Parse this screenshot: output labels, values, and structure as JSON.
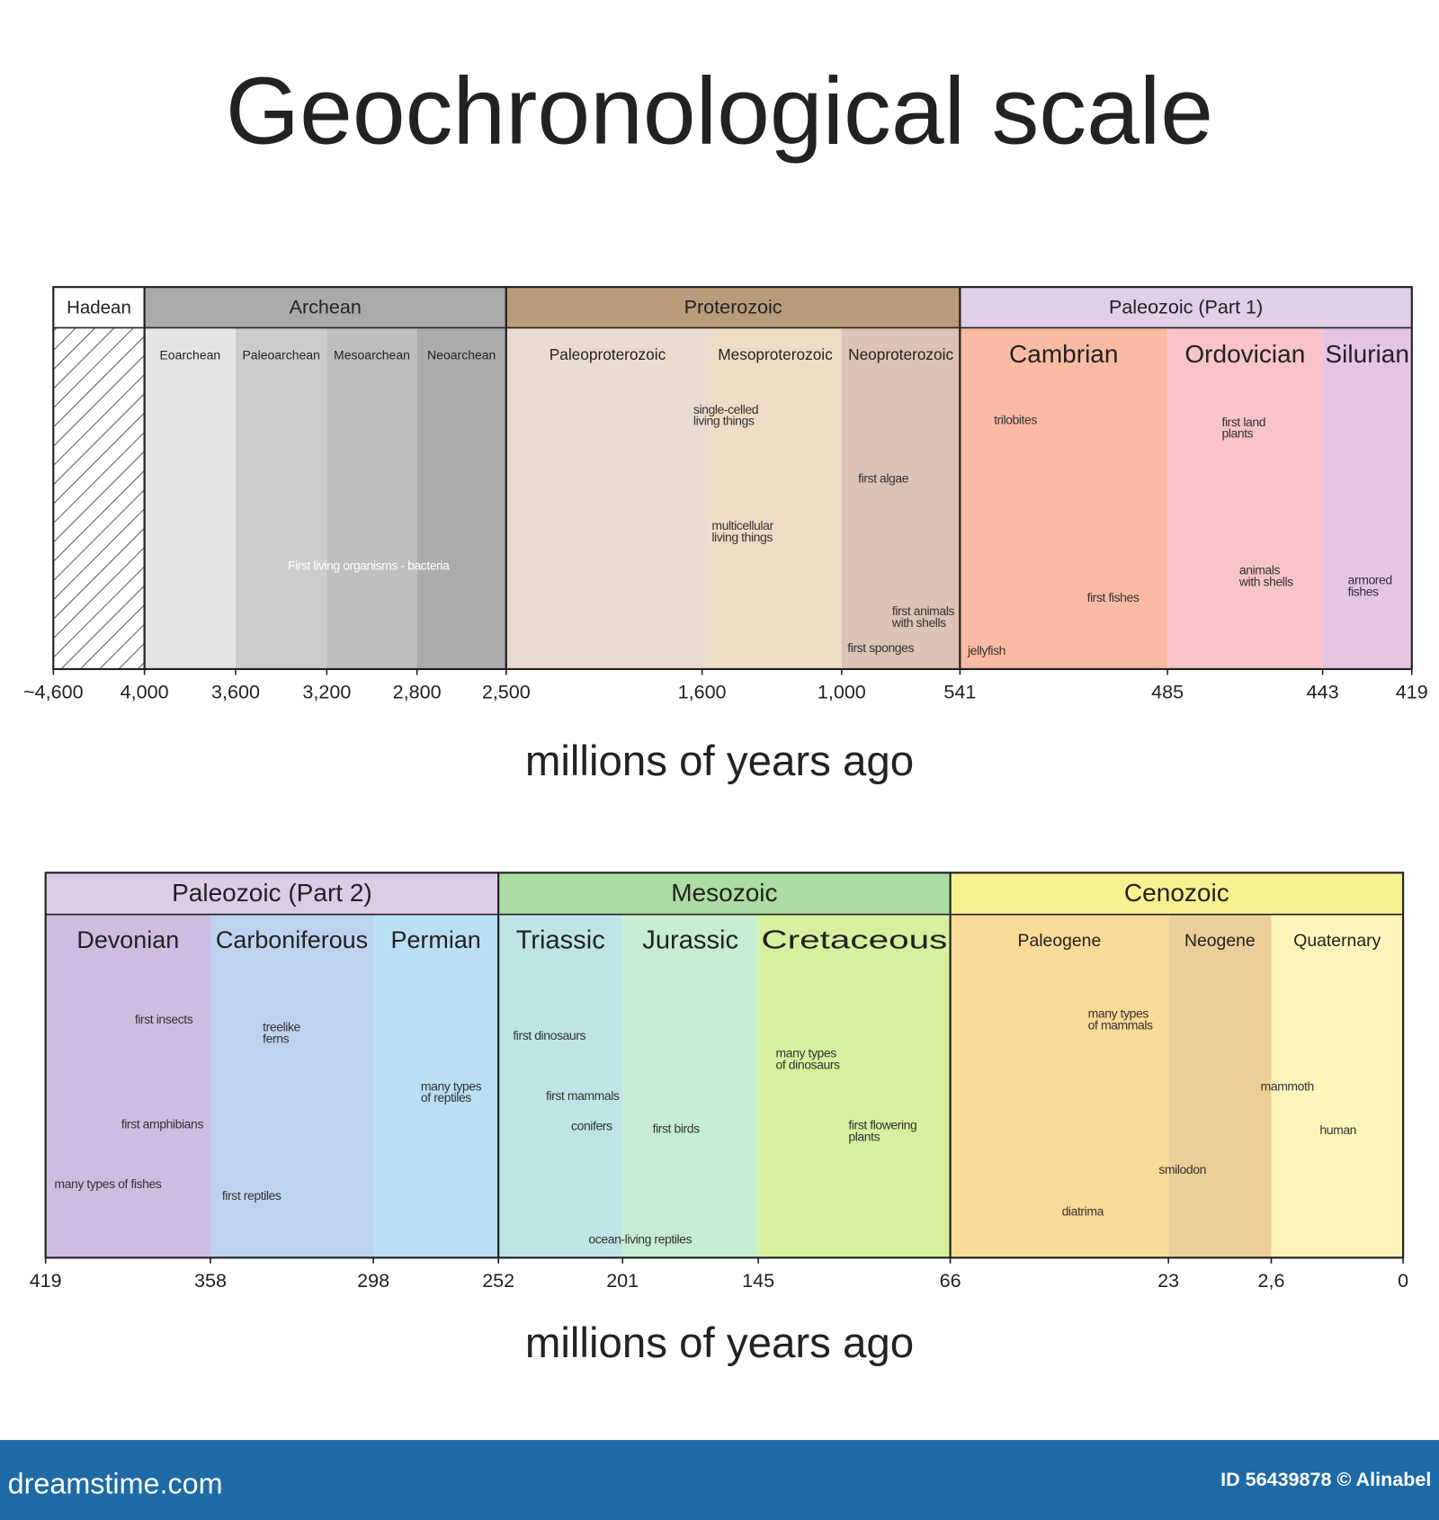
{
  "title": "Geochronological scale",
  "rows": [
    {
      "eras": [
        {
          "name": "Hadean",
          "color": "#ffffff",
          "periods": []
        },
        {
          "name": "Archean",
          "color": "#a9aba9",
          "periods": [
            {
              "name": "Eoarchean",
              "color": "#e3e4e3"
            },
            {
              "name": "Paleoarchean",
              "color": "#cbcccb"
            },
            {
              "name": "Mesoarchean",
              "color": "#bdbebd"
            },
            {
              "name": "Neoarchean",
              "color": "#abacab"
            }
          ]
        },
        {
          "name": "Proterozoic",
          "color": "#b99b79",
          "periods": [
            {
              "name": "Paleoproterozoic",
              "color": "#eadbd1"
            },
            {
              "name": "Mesoproterozoic",
              "color": "#eedcc4"
            },
            {
              "name": "Neoproterozoic",
              "color": "#dcc3b3"
            }
          ]
        },
        {
          "name": "Paleozoic  (Part 1)",
          "color": "#e0cfe7",
          "periods": [
            {
              "name": "Cambrian",
              "color": "#f9bba2"
            },
            {
              "name": "Ordovician",
              "color": "#f9c4c8"
            },
            {
              "name": "Silurian",
              "color": "#e5c4e4"
            }
          ]
        }
      ],
      "ticks": [
        "~4,600",
        "4,000",
        "3,600",
        "3,200",
        "2,800",
        "2,500",
        "1,600",
        "1,000",
        "541",
        "485",
        "443",
        "419"
      ],
      "labels": [
        [
          "First living organisms - bacteria"
        ],
        [
          "single-celled",
          "living things"
        ],
        [
          "multicellular",
          "living things"
        ],
        [
          "first algae"
        ],
        [
          "first animals",
          "with shells"
        ],
        [
          "first sponges"
        ],
        [
          "trilobites"
        ],
        [
          "first fishes"
        ],
        [
          "jellyfish"
        ],
        [
          "first land",
          "plants"
        ],
        [
          "animals",
          "with shells"
        ],
        [
          "armored",
          "fishes"
        ]
      ],
      "axis_label": "millions of years ago"
    },
    {
      "eras": [
        {
          "name": "Paleozoic  (Part 2)",
          "color": "#ddcce6",
          "periods": [
            {
              "name": "Devonian",
              "color": "#cebde1"
            },
            {
              "name": "Carboniferous",
              "color": "#bed3ef"
            },
            {
              "name": "Permian",
              "color": "#b9dff4"
            }
          ]
        },
        {
          "name": "Mesozoic",
          "color": "#abdca2",
          "periods": [
            {
              "name": "Triassic",
              "color": "#bee5e5"
            },
            {
              "name": "Jurassic",
              "color": "#c6edd1"
            },
            {
              "name": "Cretaceous",
              "color": "#d7f09e"
            }
          ]
        },
        {
          "name": "Cenozoic",
          "color": "#f8f190",
          "periods": [
            {
              "name": "Paleogene",
              "color": "#f9da96"
            },
            {
              "name": "Neogene",
              "color": "#eccf98"
            },
            {
              "name": "Quaternary",
              "color": "#fcf4ba"
            }
          ]
        }
      ],
      "ticks": [
        "419",
        "358",
        "298",
        "252",
        "201",
        "145",
        "66",
        "23",
        "2,6",
        "0"
      ],
      "labels": [
        [
          "first insects"
        ],
        [
          "first amphibians"
        ],
        [
          "many types of fishes"
        ],
        [
          "treelike",
          "ferns"
        ],
        [
          "first reptiles"
        ],
        [
          "many types",
          "of reptiles"
        ],
        [
          "first dinosaurs"
        ],
        [
          "first mammals"
        ],
        [
          "conifers"
        ],
        [
          "ocean-living reptiles"
        ],
        [
          "first birds"
        ],
        [
          "many types",
          "of dinosaurs"
        ],
        [
          "first flowering",
          "plants"
        ],
        [
          "many types",
          "of mammals"
        ],
        [
          "diatrima"
        ],
        [
          "mammoth"
        ],
        [
          "human"
        ],
        [
          "smilodon"
        ]
      ],
      "axis_label": "millions of years ago"
    }
  ],
  "footer": {
    "brand": "dreamstime.com",
    "credit": "ID 56439878 © Alinabel"
  }
}
